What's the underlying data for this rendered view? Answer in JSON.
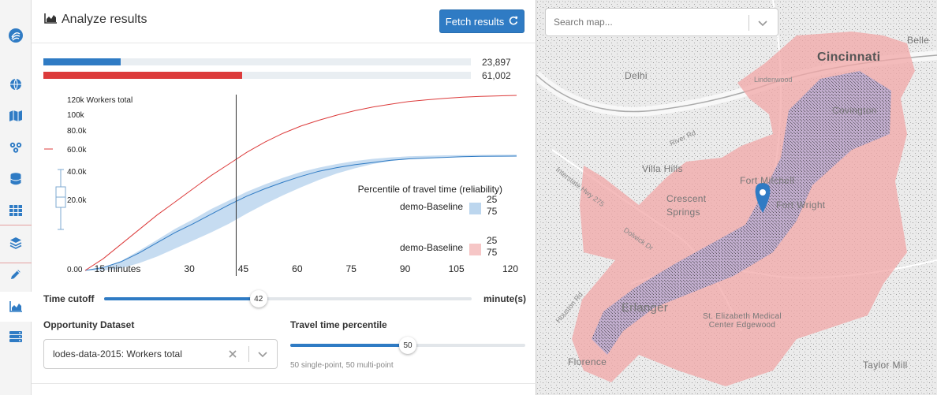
{
  "sidebar": {
    "items": [
      {
        "name": "logo-icon"
      },
      {
        "name": "globe-icon"
      },
      {
        "name": "map-icon"
      },
      {
        "name": "network-icon"
      },
      {
        "name": "database-icon"
      },
      {
        "name": "grid-icon"
      },
      {
        "name": "layers-icon"
      },
      {
        "name": "pencil-icon"
      },
      {
        "name": "area-chart-icon"
      },
      {
        "name": "server-icon"
      }
    ]
  },
  "header": {
    "title": "Analyze results",
    "fetch_label": "Fetch results"
  },
  "totals": [
    {
      "value": "23,897",
      "fraction": 0.18,
      "color": "#2f7bc4"
    },
    {
      "value": "61,002",
      "fraction": 0.465,
      "color": "#dc3b3b"
    }
  ],
  "chart_data": {
    "type": "line",
    "x": [
      0,
      5,
      10,
      15,
      20,
      25,
      30,
      35,
      40,
      45,
      50,
      55,
      60,
      65,
      70,
      75,
      80,
      85,
      90,
      95,
      100,
      105,
      110,
      115,
      120
    ],
    "xlim": [
      0,
      120
    ],
    "ylim": [
      0,
      120000
    ],
    "y_tick_labels": [
      "120k Workers total",
      "100k",
      "80.0k",
      "60.0k",
      "40.0k",
      "20.0k",
      "0.00"
    ],
    "x_tick_labels": [
      "15 minutes",
      "30",
      "45",
      "60",
      "75",
      "90",
      "105",
      "120"
    ],
    "cutoff_marker": 42,
    "series": [
      {
        "values": [
          0,
          2000,
          6000,
          12000,
          19000,
          26000,
          32000,
          38500,
          45000,
          51000,
          56000,
          60500,
          64500,
          68000,
          70500,
          72500,
          74000,
          75500,
          76500,
          77000,
          77500,
          78000,
          78200,
          78300,
          78400
        ],
        "low": [
          0,
          0,
          1500,
          5000,
          9500,
          15000,
          20500,
          26000,
          32000,
          39000,
          45500,
          51500,
          57000,
          62000,
          66500,
          70000,
          73000,
          75000,
          76500,
          77200,
          77800,
          78100,
          78300,
          78400,
          78500
        ],
        "high": [
          0,
          1500,
          6500,
          13500,
          21000,
          28500,
          35000,
          42000,
          48000,
          54000,
          59000,
          63500,
          67500,
          70500,
          73000,
          75000,
          76500,
          77500,
          78200,
          78600,
          78900,
          79100,
          79200,
          79300,
          79400
        ],
        "color": "#2f7bc4"
      },
      {
        "values": [
          0,
          8000,
          18000,
          28000,
          38000,
          47000,
          56000,
          65000,
          73000,
          81000,
          88000,
          94000,
          99000,
          103000,
          106500,
          109500,
          112000,
          114000,
          115800,
          117000,
          118000,
          118800,
          119300,
          119700,
          120000
        ],
        "color": "#dc3b3b"
      }
    ],
    "legend": {
      "title": "Percentile of travel time (reliability)",
      "entries": [
        {
          "label": "demo-Baseline",
          "p_low": "25",
          "p_high": "75",
          "color": "#bcd6ee"
        },
        {
          "label": "demo-Baseline",
          "p_low": "25",
          "p_high": "75",
          "color": "#f6c6c6"
        }
      ]
    }
  },
  "time_cutoff": {
    "label": "Time cutoff",
    "value": "42",
    "unit": "minute(s)",
    "fraction": 0.42
  },
  "dataset": {
    "label": "Opportunity Dataset",
    "value": "lodes-data-2015: Workers total"
  },
  "percentile": {
    "label": "Travel time percentile",
    "value": "50",
    "fraction": 0.5,
    "note": "50 single-point, 50 multi-point"
  },
  "map": {
    "search_placeholder": "Search map...",
    "labels": [
      {
        "text": "Cincinnati",
        "big": true
      },
      {
        "text": "Covington",
        "big": false
      },
      {
        "text": "Delhi",
        "big": false
      },
      {
        "text": "Villa Hills",
        "big": false
      },
      {
        "text": "Fort Mitchell",
        "big": false
      },
      {
        "text": "Fort Wright",
        "big": false
      },
      {
        "text": "Crescent Springs",
        "big": false
      },
      {
        "text": "Erlanger",
        "big": false
      },
      {
        "text": "Florence",
        "big": false
      },
      {
        "text": "Taylor Mill",
        "big": false
      },
      {
        "text": "St. Elizabeth Medical Center Edgewood",
        "big": false
      },
      {
        "text": "Belle",
        "big": false
      },
      {
        "text": "River Rd",
        "big": false
      },
      {
        "text": "Interstate Hwy 275",
        "big": false
      },
      {
        "text": "Dolwick Dr",
        "big": false
      },
      {
        "text": "Houston Rd",
        "big": false
      },
      {
        "text": "Lindenwood",
        "big": false
      }
    ]
  }
}
